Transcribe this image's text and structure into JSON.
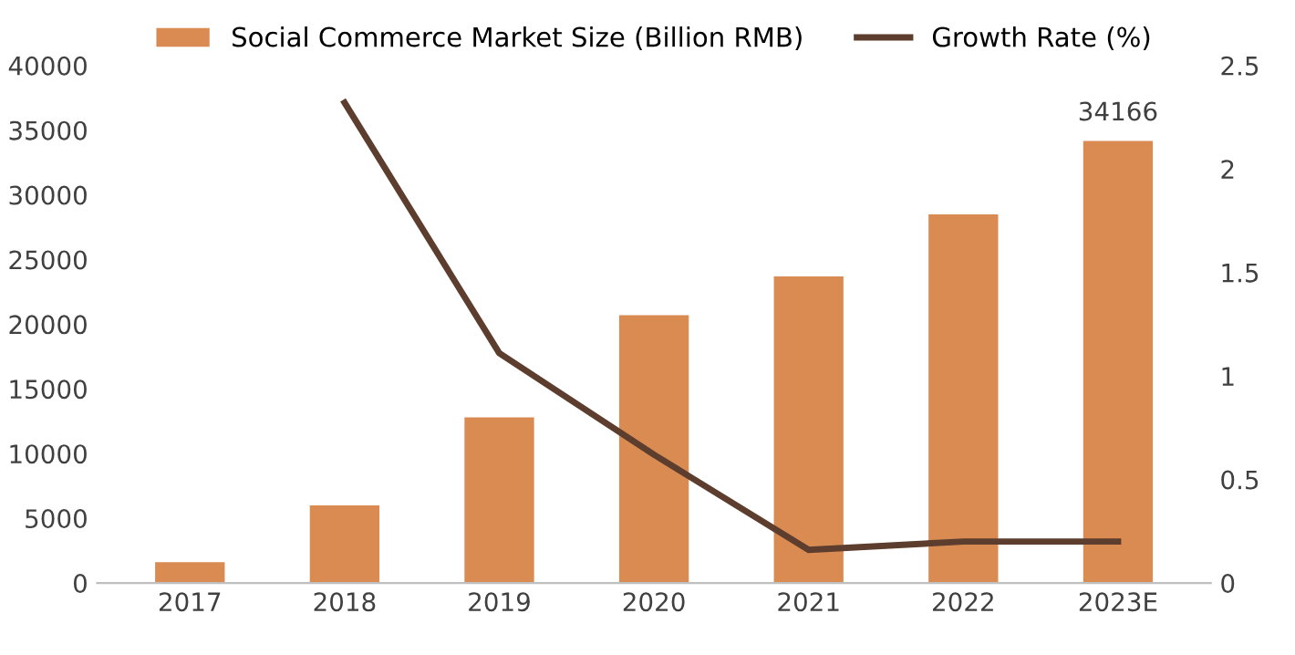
{
  "chart_data": {
    "type": "bar",
    "categories": [
      "2017",
      "2018",
      "2019",
      "2020",
      "2021",
      "2022",
      "2023E"
    ],
    "series": [
      {
        "name": "Social Commerce Market Size (Billion RMB)",
        "color": "#d98b52",
        "values": [
          1600,
          6000,
          12800,
          20700,
          23700,
          28500,
          34166
        ],
        "value_labels": [
          null,
          null,
          null,
          null,
          null,
          null,
          "34166"
        ]
      },
      {
        "name": "Growth Rate (%)",
        "type": "line",
        "axis": "y2",
        "color": "#5c3d2e",
        "values": [
          null,
          2.32,
          1.11,
          0.62,
          0.16,
          0.2,
          0.2
        ]
      }
    ],
    "ylim": [
      0,
      40000
    ],
    "yticks": [
      0,
      5000,
      10000,
      15000,
      20000,
      25000,
      30000,
      35000,
      40000
    ],
    "y2lim": [
      0,
      2.5
    ],
    "y2ticks": [
      0,
      0.5,
      1,
      1.5,
      2,
      2.5
    ],
    "grid": false,
    "legend": "top",
    "marker": "none",
    "line_style": "solid"
  }
}
